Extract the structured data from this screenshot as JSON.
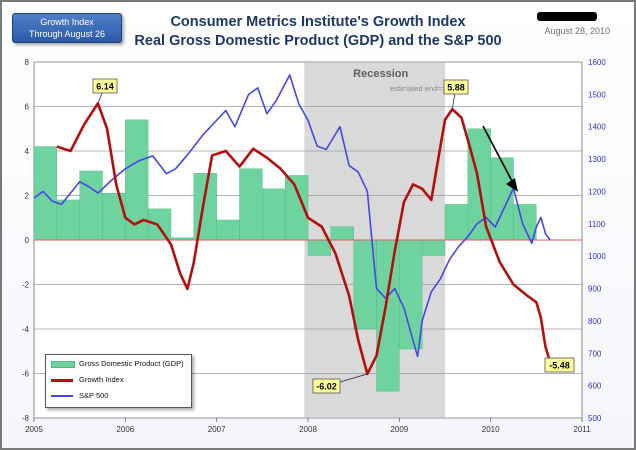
{
  "header": {
    "badge_line1": "Growth Index",
    "badge_line2": "Through August 26",
    "title": "Consumer Metrics Institute's Growth Index",
    "subtitle": "Real Gross Domestic Product (GDP) and the S&P 500",
    "date": "August 28, 2010"
  },
  "annotations": {
    "recession": "Recession",
    "estimated_end": "estimated end=>"
  },
  "colors": {
    "gdp_fill": "#6fd3a0",
    "gdp_stroke": "#4eb886",
    "growth_line": "#b30f0f",
    "sp500_line": "#4646e6",
    "recession_band": "#d9d9d9",
    "callout_fill": "#ffff99",
    "arrow": "#000000"
  },
  "chart_data": {
    "type": "line",
    "title": "Consumer Metrics Institute's Growth Index",
    "subtitle": "Real Gross Domestic Product (GDP) and the S&P 500",
    "xlim": [
      2005,
      2011
    ],
    "ylim": [
      -8,
      8
    ],
    "y2lim": [
      500,
      1600
    ],
    "x_ticks": [
      "2005",
      "2006",
      "2007",
      "2008",
      "2009",
      "2010",
      "2011"
    ],
    "y_ticks": [
      -8,
      -6,
      -4,
      -2,
      0,
      2,
      4,
      6,
      8
    ],
    "y2_ticks": [
      500,
      600,
      700,
      800,
      900,
      1000,
      1100,
      1200,
      1300,
      1400,
      1500,
      1600
    ],
    "grid": true,
    "legend_position": "bottom-left",
    "recession": {
      "start": 2007.96,
      "end": 2009.5
    },
    "legend": [
      "Gross Domestic Product (GDP)",
      "Growth Index",
      "S&P 500"
    ],
    "series": [
      {
        "name": "Gross Domestic Product (GDP)",
        "kind": "bar",
        "axis": "left",
        "quarters": [
          2005.0,
          2005.25,
          2005.5,
          2005.75,
          2006.0,
          2006.25,
          2006.5,
          2006.75,
          2007.0,
          2007.25,
          2007.5,
          2007.75,
          2008.0,
          2008.25,
          2008.5,
          2008.75,
          2009.0,
          2009.25,
          2009.5,
          2009.75,
          2010.0,
          2010.25
        ],
        "values": [
          4.2,
          1.8,
          3.1,
          2.1,
          5.4,
          1.4,
          0.1,
          3.0,
          0.9,
          3.2,
          2.3,
          2.9,
          -0.7,
          0.6,
          -4.0,
          -6.8,
          -4.9,
          -0.7,
          1.6,
          5.0,
          3.7,
          1.6
        ]
      },
      {
        "name": "Growth Index",
        "kind": "line",
        "axis": "left",
        "points": [
          [
            2005.25,
            4.2
          ],
          [
            2005.4,
            4.0
          ],
          [
            2005.55,
            5.2
          ],
          [
            2005.7,
            6.14
          ],
          [
            2005.8,
            5.0
          ],
          [
            2005.9,
            2.5
          ],
          [
            2006.0,
            1.0
          ],
          [
            2006.1,
            0.7
          ],
          [
            2006.2,
            0.9
          ],
          [
            2006.35,
            0.7
          ],
          [
            2006.5,
            -0.2
          ],
          [
            2006.6,
            -1.5
          ],
          [
            2006.68,
            -2.2
          ],
          [
            2006.75,
            -1.0
          ],
          [
            2006.85,
            1.5
          ],
          [
            2006.95,
            3.8
          ],
          [
            2007.1,
            4.0
          ],
          [
            2007.25,
            3.3
          ],
          [
            2007.4,
            4.1
          ],
          [
            2007.55,
            3.7
          ],
          [
            2007.7,
            3.2
          ],
          [
            2007.85,
            2.5
          ],
          [
            2008.0,
            1.0
          ],
          [
            2008.15,
            0.6
          ],
          [
            2008.3,
            -0.6
          ],
          [
            2008.45,
            -2.5
          ],
          [
            2008.55,
            -4.5
          ],
          [
            2008.65,
            -6.02
          ],
          [
            2008.75,
            -5.2
          ],
          [
            2008.85,
            -3.0
          ],
          [
            2008.95,
            -0.5
          ],
          [
            2009.05,
            1.7
          ],
          [
            2009.15,
            2.5
          ],
          [
            2009.25,
            2.3
          ],
          [
            2009.35,
            1.8
          ],
          [
            2009.42,
            3.5
          ],
          [
            2009.5,
            5.4
          ],
          [
            2009.58,
            5.88
          ],
          [
            2009.68,
            5.5
          ],
          [
            2009.75,
            4.5
          ],
          [
            2009.85,
            3.0
          ],
          [
            2009.95,
            0.6
          ],
          [
            2010.1,
            -1.0
          ],
          [
            2010.25,
            -2.0
          ],
          [
            2010.4,
            -2.5
          ],
          [
            2010.5,
            -2.8
          ],
          [
            2010.55,
            -3.5
          ],
          [
            2010.6,
            -4.8
          ],
          [
            2010.65,
            -5.48
          ]
        ]
      },
      {
        "name": "S&P 500",
        "kind": "line",
        "axis": "right",
        "points": [
          [
            2005.0,
            1180
          ],
          [
            2005.1,
            1200
          ],
          [
            2005.2,
            1170
          ],
          [
            2005.3,
            1160
          ],
          [
            2005.4,
            1195
          ],
          [
            2005.5,
            1230
          ],
          [
            2005.6,
            1215
          ],
          [
            2005.7,
            1195
          ],
          [
            2005.85,
            1235
          ],
          [
            2006.0,
            1270
          ],
          [
            2006.15,
            1295
          ],
          [
            2006.3,
            1310
          ],
          [
            2006.45,
            1255
          ],
          [
            2006.55,
            1270
          ],
          [
            2006.7,
            1320
          ],
          [
            2006.85,
            1375
          ],
          [
            2007.0,
            1420
          ],
          [
            2007.1,
            1450
          ],
          [
            2007.2,
            1400
          ],
          [
            2007.35,
            1500
          ],
          [
            2007.45,
            1520
          ],
          [
            2007.55,
            1440
          ],
          [
            2007.65,
            1480
          ],
          [
            2007.8,
            1560
          ],
          [
            2007.9,
            1470
          ],
          [
            2008.0,
            1420
          ],
          [
            2008.1,
            1340
          ],
          [
            2008.2,
            1330
          ],
          [
            2008.35,
            1400
          ],
          [
            2008.45,
            1280
          ],
          [
            2008.55,
            1260
          ],
          [
            2008.65,
            1200
          ],
          [
            2008.75,
            900
          ],
          [
            2008.85,
            870
          ],
          [
            2008.95,
            900
          ],
          [
            2009.05,
            840
          ],
          [
            2009.15,
            740
          ],
          [
            2009.2,
            690
          ],
          [
            2009.25,
            800
          ],
          [
            2009.35,
            890
          ],
          [
            2009.45,
            930
          ],
          [
            2009.55,
            990
          ],
          [
            2009.65,
            1030
          ],
          [
            2009.75,
            1060
          ],
          [
            2009.85,
            1100
          ],
          [
            2009.95,
            1120
          ],
          [
            2010.05,
            1090
          ],
          [
            2010.15,
            1150
          ],
          [
            2010.25,
            1210
          ],
          [
            2010.35,
            1100
          ],
          [
            2010.45,
            1040
          ],
          [
            2010.5,
            1090
          ],
          [
            2010.55,
            1120
          ],
          [
            2010.6,
            1070
          ],
          [
            2010.65,
            1050
          ]
        ]
      }
    ],
    "callouts": [
      {
        "label": "6.14",
        "x": 2005.7,
        "y": 6.14
      },
      {
        "label": "5.88",
        "x": 2009.58,
        "y": 5.88
      },
      {
        "label": "-6.02",
        "x": 2008.65,
        "y": -6.02
      },
      {
        "label": "-5.48",
        "x": 2010.65,
        "y": -5.48
      }
    ]
  }
}
